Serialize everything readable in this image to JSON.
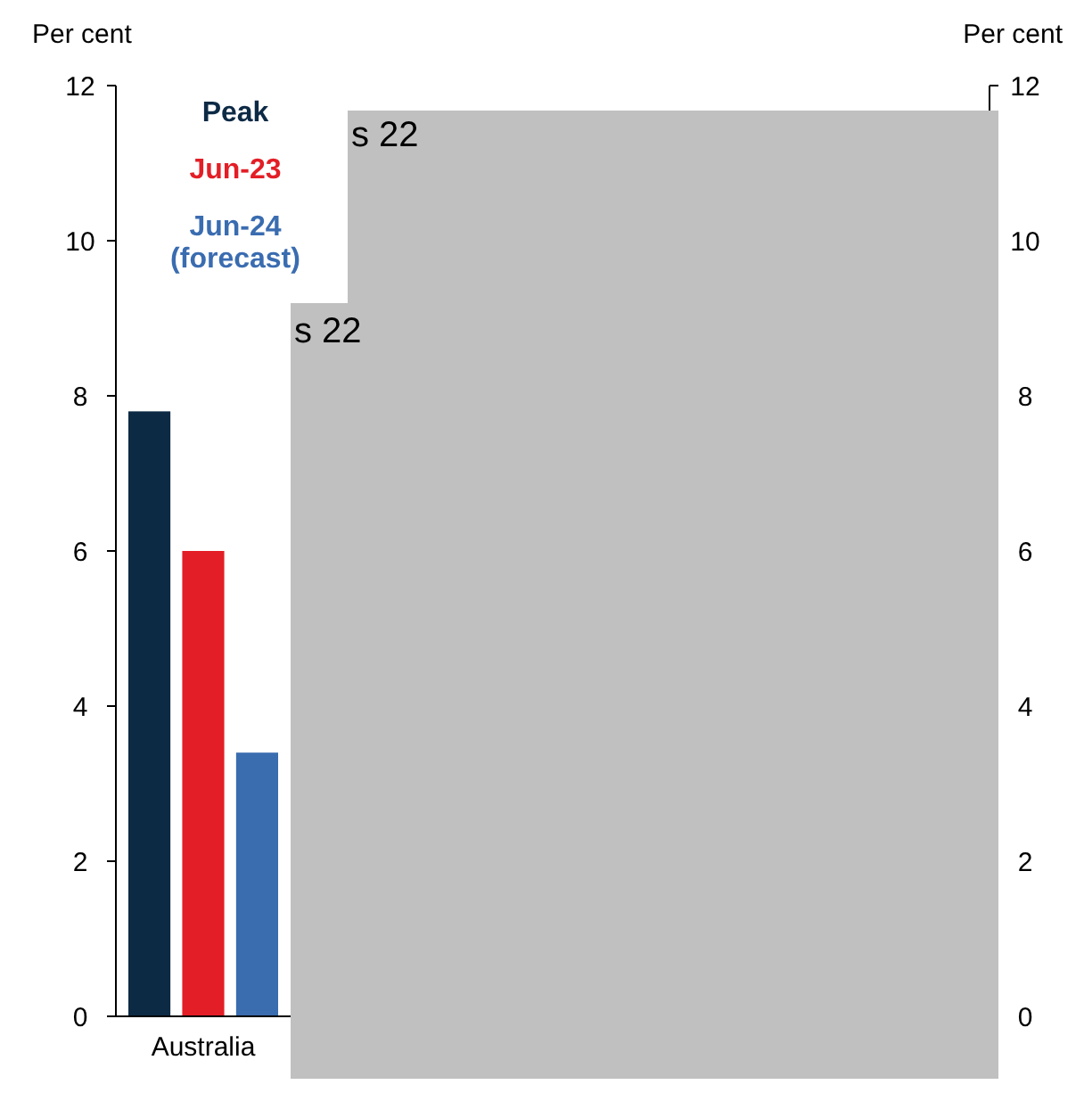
{
  "chart_data": {
    "type": "bar",
    "ylabel": "Per cent",
    "y2label": "Per cent",
    "categories": [
      "Australia",
      null,
      null,
      null,
      null
    ],
    "series": [
      {
        "name": "Peak",
        "color": "#0d2a45",
        "values": [
          7.8,
          null,
          null,
          null,
          null
        ]
      },
      {
        "name": "Jun-23",
        "color": "#e31e26",
        "values": [
          6.0,
          null,
          null,
          null,
          null
        ]
      },
      {
        "name": "Jun-24 (forecast)",
        "color": "#3a6cb0",
        "values": [
          3.4,
          null,
          null,
          null,
          null
        ]
      }
    ],
    "ylim": [
      0,
      12
    ],
    "yticks": [
      0,
      2,
      4,
      6,
      8,
      10,
      12
    ],
    "y2lim": [
      0,
      12
    ],
    "y2ticks": [
      0,
      2,
      4,
      6,
      8,
      10,
      12
    ],
    "legend": "top left",
    "grid": false,
    "annotations": [
      "s 22",
      "s 22"
    ]
  }
}
